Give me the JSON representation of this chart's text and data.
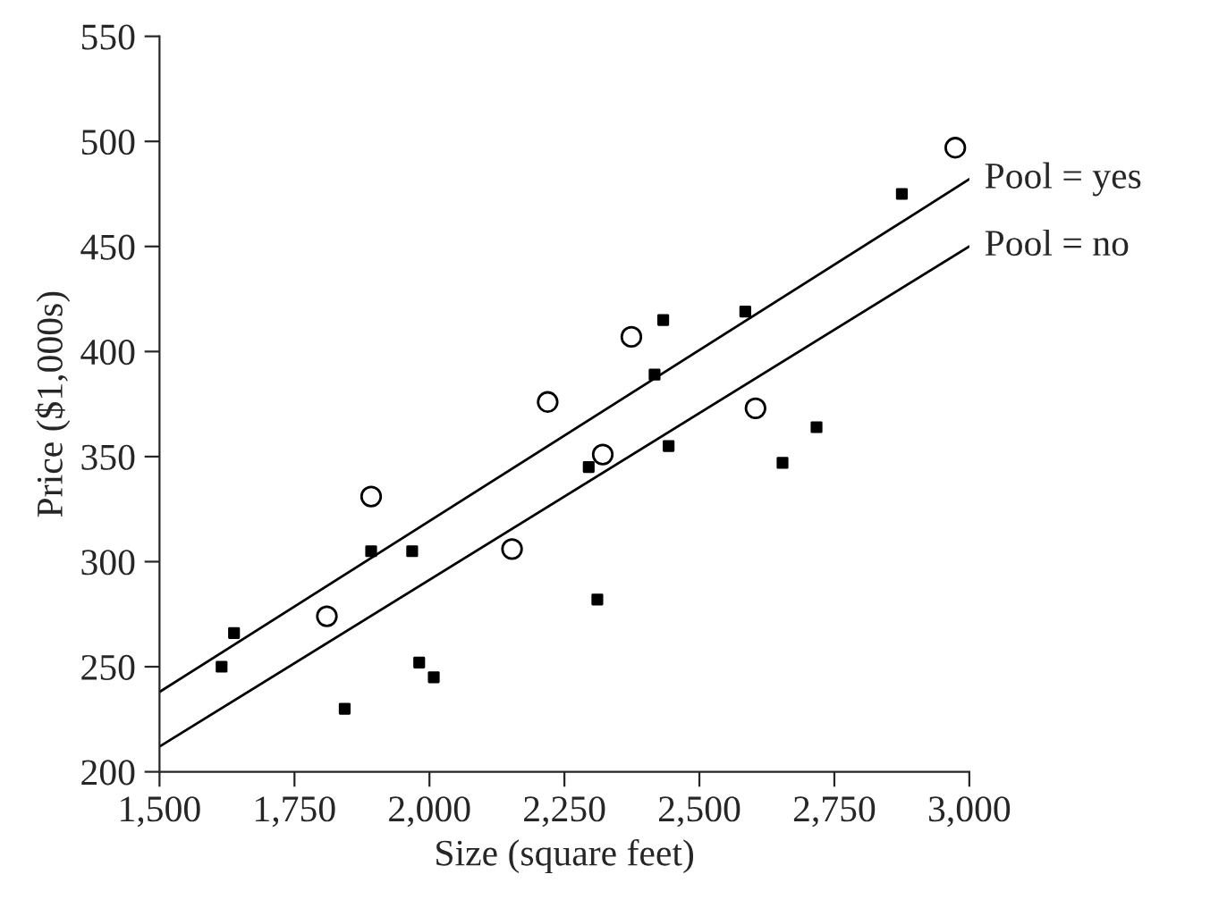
{
  "chart_data": {
    "type": "scatter",
    "xlabel": "Size (square feet)",
    "ylabel": "Price ($1,000s)",
    "xlim": [
      1500,
      3000
    ],
    "ylim": [
      200,
      550
    ],
    "xticks": [
      {
        "value": 1500,
        "label": "1,500"
      },
      {
        "value": 1750,
        "label": "1,750"
      },
      {
        "value": 2000,
        "label": "2,000"
      },
      {
        "value": 2250,
        "label": "2,250"
      },
      {
        "value": 2500,
        "label": "2,500"
      },
      {
        "value": 2750,
        "label": "2,750"
      },
      {
        "value": 3000,
        "label": "3,000"
      }
    ],
    "yticks": [
      200,
      250,
      300,
      350,
      400,
      450,
      500,
      550
    ],
    "grid": false,
    "legend": false,
    "series": [
      {
        "marker": "circle",
        "color": "#000000",
        "x": [
          1810,
          1892,
          2153,
          2219,
          2321,
          2374,
          2604,
          2974
        ],
        "values": [
          274,
          331,
          306,
          376,
          351,
          407,
          373,
          497
        ]
      },
      {
        "marker": "square",
        "color": "#000000",
        "x": [
          1615,
          1638,
          1843,
          1892,
          1968,
          1981,
          2008,
          2295,
          2311,
          2417,
          2433,
          2443,
          2585,
          2654,
          2717,
          2875
        ],
        "values": [
          250,
          266,
          230,
          305,
          305,
          252,
          245,
          345,
          282,
          389,
          415,
          355,
          419,
          347,
          364,
          475
        ]
      },
      {
        "type": "line",
        "name": "Pool = yes",
        "color": "#000000",
        "line_style": "solid",
        "x": [
          1500,
          3000
        ],
        "values": [
          238,
          482
        ]
      },
      {
        "type": "line",
        "name": "Pool = no",
        "color": "#000000",
        "line_style": "solid",
        "x": [
          1500,
          3000
        ],
        "values": [
          212,
          450
        ]
      }
    ]
  }
}
